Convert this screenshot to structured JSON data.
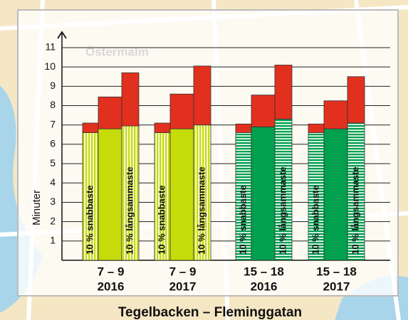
{
  "chart_data": {
    "type": "stacked-grouped-bar",
    "title": "Tegelbacken – Fleminggatan",
    "ylabel": "Minuter",
    "map_labels": [
      "Östermalm"
    ],
    "categories": [
      [
        "7 – 9",
        "2016"
      ],
      [
        "7 – 9",
        "2017"
      ],
      [
        "15 – 18",
        "2016"
      ],
      [
        "15 – 18",
        "2017"
      ]
    ],
    "base_colors": [
      "#c5dc0a",
      "#c5dc0a",
      "#00a04e",
      "#00a04e"
    ],
    "stripes": [
      "vertical",
      "vertical",
      "horizontal",
      "horizontal"
    ],
    "top_color": "#e2301f",
    "bars": [
      {
        "label": "10 % snabbaste",
        "striped": true,
        "base": [
          6.6,
          6.6,
          6.6,
          6.6
        ],
        "extra": [
          0.5,
          0.5,
          0.45,
          0.45
        ]
      },
      {
        "label": null,
        "striped": false,
        "base": [
          6.8,
          6.8,
          6.9,
          6.8
        ],
        "extra": [
          1.65,
          1.8,
          1.65,
          1.45
        ]
      },
      {
        "label": "10 % långsammaste",
        "striped": true,
        "base": [
          6.95,
          7.0,
          7.3,
          7.1
        ],
        "extra": [
          2.75,
          3.05,
          2.8,
          2.4
        ]
      }
    ],
    "ylim": [
      0,
      11
    ],
    "yticks": [
      1,
      2,
      3,
      4,
      5,
      6,
      7,
      8,
      9,
      10,
      11
    ],
    "grid": true
  }
}
